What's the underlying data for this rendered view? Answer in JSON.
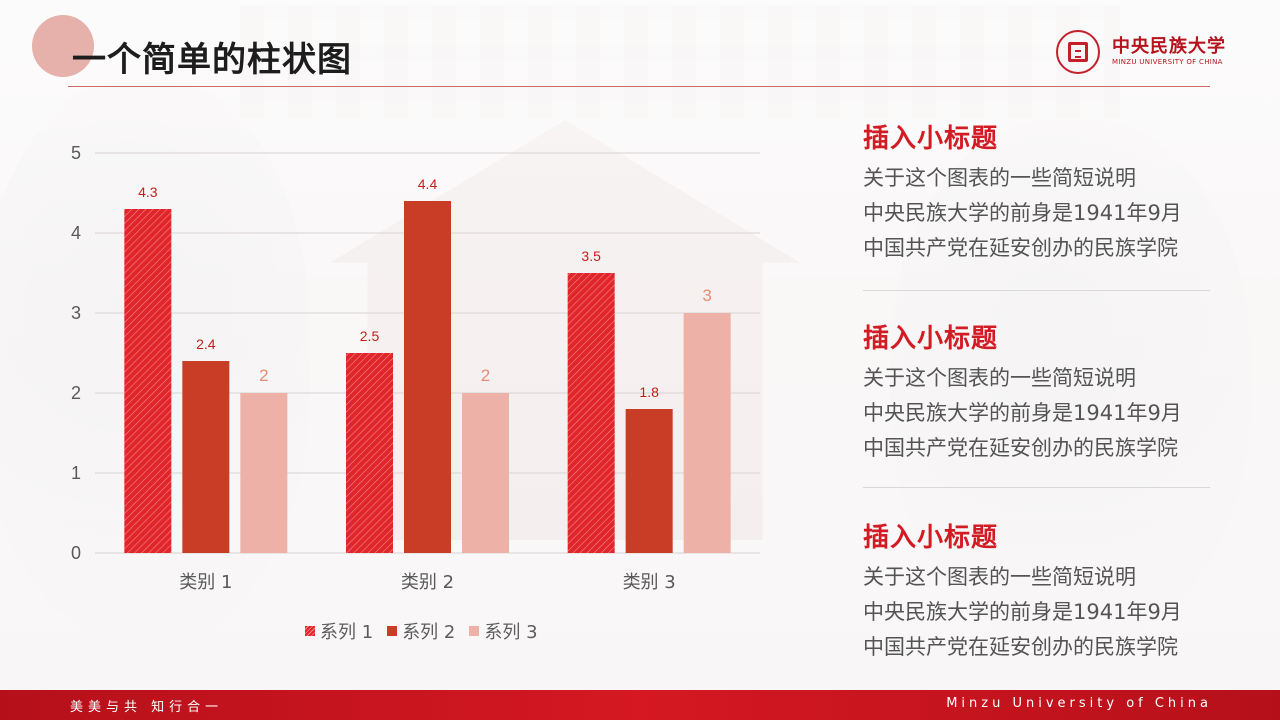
{
  "page": {
    "title": "一个简单的柱状图"
  },
  "logo": {
    "cn": "中央民族大学",
    "en": "MINZU UNIVERSITY OF CHINA"
  },
  "chart_data": {
    "type": "bar",
    "categories": [
      "类别 1",
      "类别 2",
      "类别 3"
    ],
    "series": [
      {
        "name": "系列 1",
        "values": [
          4.3,
          2.5,
          3.5
        ],
        "color": "#e0262b"
      },
      {
        "name": "系列 2",
        "values": [
          2.4,
          4.4,
          1.8
        ],
        "color": "#c93d26"
      },
      {
        "name": "系列 3",
        "values": [
          2,
          2,
          3
        ],
        "color": "#eeb1a8"
      }
    ],
    "ylim": [
      0,
      5
    ],
    "yticks": [
      0,
      1,
      2,
      3,
      4,
      5
    ],
    "grid": true,
    "legend": "bottom",
    "data_labels": true,
    "label_colors": [
      "#c3201d",
      "#c3201d",
      "#e78b75"
    ]
  },
  "side": [
    {
      "title": "插入小标题",
      "lines": [
        "关于这个图表的一些简短说明",
        "中央民族大学的前身是1941年9月",
        "中国共产党在延安创办的民族学院"
      ]
    },
    {
      "title": "插入小标题",
      "lines": [
        "关于这个图表的一些简短说明",
        "中央民族大学的前身是1941年9月",
        "中国共产党在延安创办的民族学院"
      ]
    },
    {
      "title": "插入小标题",
      "lines": [
        "关于这个图表的一些简短说明",
        "中央民族大学的前身是1941年9月",
        "中国共产党在延安创办的民族学院"
      ]
    }
  ],
  "footer": {
    "left": "美美与共 知行合一",
    "right": "Minzu University of China"
  }
}
